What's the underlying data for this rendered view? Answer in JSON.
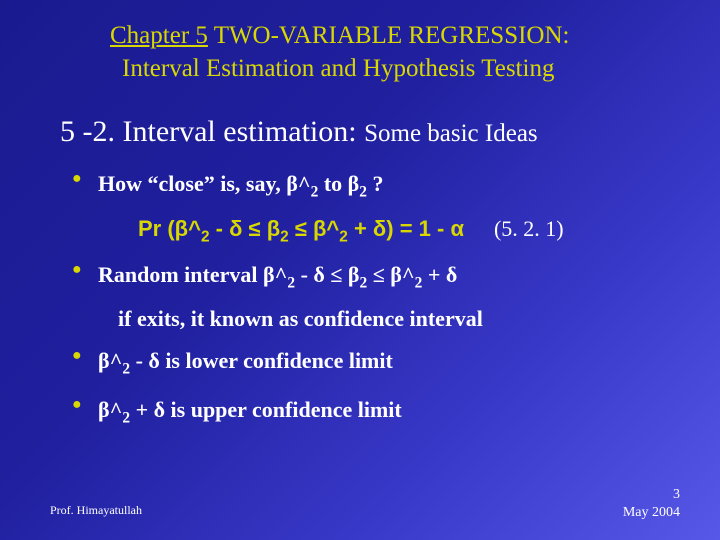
{
  "title": {
    "chapter": "Chapter 5",
    "rest1": " TWO-VARIABLE REGRESSION:",
    "line2": "Interval Estimation and Hypothesis Testing"
  },
  "heading": {
    "main": "5 -2. Interval estimation: ",
    "sub": "Some basic Ideas"
  },
  "bullets": {
    "b1": "How “close” is, say, β^",
    "b1_sub": "2",
    "b1_mid": " to β",
    "b1_sub2": "2",
    "b1_end": " ?",
    "formula": "Pr (β^",
    "formula_s1": "2",
    "formula_p2": " - δ ≤ β",
    "formula_s2": "2",
    "formula_p3": " ≤ β^",
    "formula_s3": "2",
    "formula_p4": " + δ) = 1 -  α",
    "formula_tag": "(5. 2. 1)",
    "b2": "Random interval  β^",
    "b2_s1": "2",
    "b2_p2": " - δ ≤ β",
    "b2_s2": "2",
    "b2_p3": " ≤ β^",
    "b2_s3": "2",
    "b2_p4": " + δ",
    "b2_cont": "if exits, it known as confidence interval",
    "b3": "β^",
    "b3_s1": "2",
    "b3_p2": " - δ is lower confidence limit",
    "b4": "β^",
    "b4_s1": "2",
    "b4_p2": " + δ is upper confidence limit"
  },
  "footer": {
    "left": "Prof. Himayatullah",
    "right_num": "3",
    "right_date": "May 2004"
  },
  "colors": {
    "bg_start": "#1a1a8f",
    "bg_end": "#5858e8",
    "accent": "#d8d800",
    "text": "#ffffff"
  }
}
